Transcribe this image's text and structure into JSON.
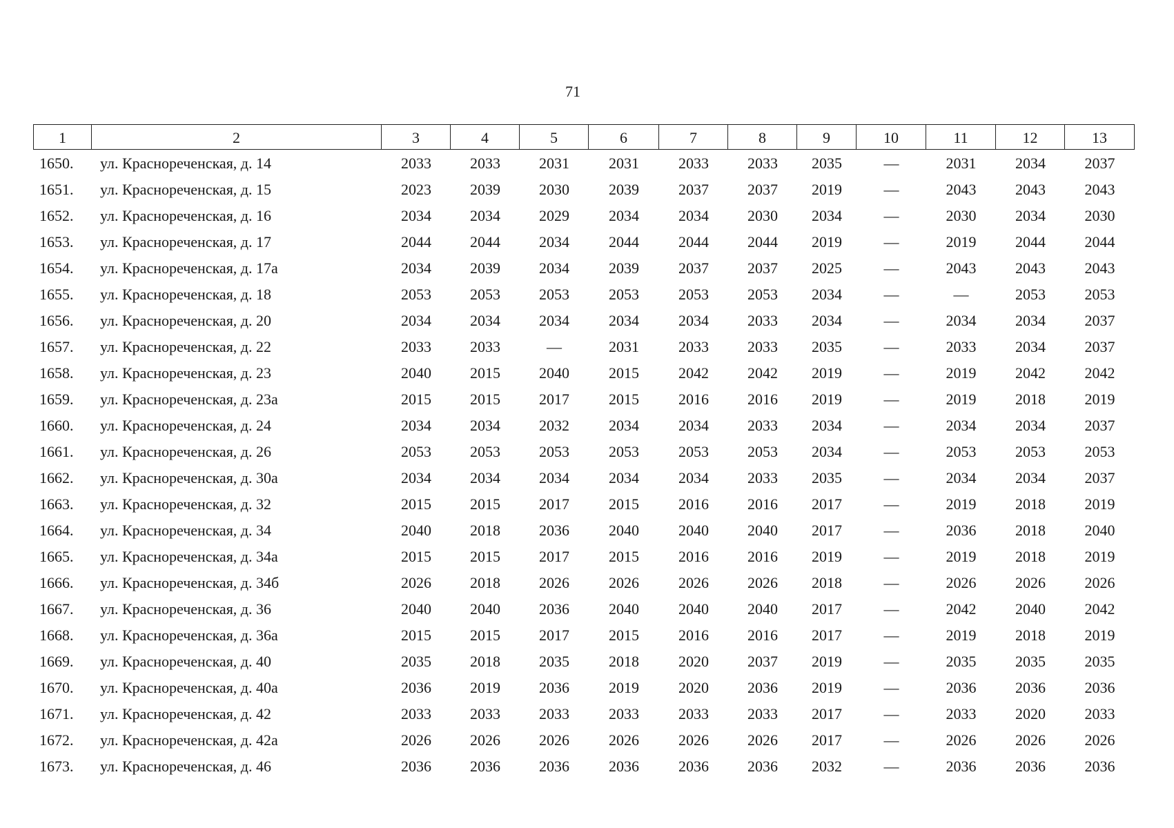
{
  "page_number": "71",
  "table": {
    "header": [
      "1",
      "2",
      "3",
      "4",
      "5",
      "6",
      "7",
      "8",
      "9",
      "10",
      "11",
      "12",
      "13"
    ],
    "rows": [
      [
        "1650.",
        "ул. Краснореченская, д. 14",
        "2033",
        "2033",
        "2031",
        "2031",
        "2033",
        "2033",
        "2035",
        "—",
        "2031",
        "2034",
        "2037"
      ],
      [
        "1651.",
        "ул. Краснореченская, д. 15",
        "2023",
        "2039",
        "2030",
        "2039",
        "2037",
        "2037",
        "2019",
        "—",
        "2043",
        "2043",
        "2043"
      ],
      [
        "1652.",
        "ул. Краснореченская, д. 16",
        "2034",
        "2034",
        "2029",
        "2034",
        "2034",
        "2030",
        "2034",
        "—",
        "2030",
        "2034",
        "2030"
      ],
      [
        "1653.",
        "ул. Краснореченская, д. 17",
        "2044",
        "2044",
        "2034",
        "2044",
        "2044",
        "2044",
        "2019",
        "—",
        "2019",
        "2044",
        "2044"
      ],
      [
        "1654.",
        "ул. Краснореченская, д. 17а",
        "2034",
        "2039",
        "2034",
        "2039",
        "2037",
        "2037",
        "2025",
        "—",
        "2043",
        "2043",
        "2043"
      ],
      [
        "1655.",
        "ул. Краснореченская, д. 18",
        "2053",
        "2053",
        "2053",
        "2053",
        "2053",
        "2053",
        "2034",
        "—",
        "—",
        "2053",
        "2053"
      ],
      [
        "1656.",
        "ул. Краснореченская, д. 20",
        "2034",
        "2034",
        "2034",
        "2034",
        "2034",
        "2033",
        "2034",
        "—",
        "2034",
        "2034",
        "2037"
      ],
      [
        "1657.",
        "ул. Краснореченская, д. 22",
        "2033",
        "2033",
        "—",
        "2031",
        "2033",
        "2033",
        "2035",
        "—",
        "2033",
        "2034",
        "2037"
      ],
      [
        "1658.",
        "ул. Краснореченская, д. 23",
        "2040",
        "2015",
        "2040",
        "2015",
        "2042",
        "2042",
        "2019",
        "—",
        "2019",
        "2042",
        "2042"
      ],
      [
        "1659.",
        "ул. Краснореченская, д. 23а",
        "2015",
        "2015",
        "2017",
        "2015",
        "2016",
        "2016",
        "2019",
        "—",
        "2019",
        "2018",
        "2019"
      ],
      [
        "1660.",
        "ул. Краснореченская, д. 24",
        "2034",
        "2034",
        "2032",
        "2034",
        "2034",
        "2033",
        "2034",
        "—",
        "2034",
        "2034",
        "2037"
      ],
      [
        "1661.",
        "ул. Краснореченская, д. 26",
        "2053",
        "2053",
        "2053",
        "2053",
        "2053",
        "2053",
        "2034",
        "—",
        "2053",
        "2053",
        "2053"
      ],
      [
        "1662.",
        "ул. Краснореченская, д. 30а",
        "2034",
        "2034",
        "2034",
        "2034",
        "2034",
        "2033",
        "2035",
        "—",
        "2034",
        "2034",
        "2037"
      ],
      [
        "1663.",
        "ул. Краснореченская, д. 32",
        "2015",
        "2015",
        "2017",
        "2015",
        "2016",
        "2016",
        "2017",
        "—",
        "2019",
        "2018",
        "2019"
      ],
      [
        "1664.",
        "ул. Краснореченская, д. 34",
        "2040",
        "2018",
        "2036",
        "2040",
        "2040",
        "2040",
        "2017",
        "—",
        "2036",
        "2018",
        "2040"
      ],
      [
        "1665.",
        "ул. Краснореченская, д. 34а",
        "2015",
        "2015",
        "2017",
        "2015",
        "2016",
        "2016",
        "2019",
        "—",
        "2019",
        "2018",
        "2019"
      ],
      [
        "1666.",
        "ул. Краснореченская, д. 34б",
        "2026",
        "2018",
        "2026",
        "2026",
        "2026",
        "2026",
        "2018",
        "—",
        "2026",
        "2026",
        "2026"
      ],
      [
        "1667.",
        "ул. Краснореченская, д. 36",
        "2040",
        "2040",
        "2036",
        "2040",
        "2040",
        "2040",
        "2017",
        "—",
        "2042",
        "2040",
        "2042"
      ],
      [
        "1668.",
        "ул. Краснореченская, д. 36а",
        "2015",
        "2015",
        "2017",
        "2015",
        "2016",
        "2016",
        "2017",
        "—",
        "2019",
        "2018",
        "2019"
      ],
      [
        "1669.",
        "ул. Краснореченская, д. 40",
        "2035",
        "2018",
        "2035",
        "2018",
        "2020",
        "2037",
        "2019",
        "—",
        "2035",
        "2035",
        "2035"
      ],
      [
        "1670.",
        "ул. Краснореченская, д. 40а",
        "2036",
        "2019",
        "2036",
        "2019",
        "2020",
        "2036",
        "2019",
        "—",
        "2036",
        "2036",
        "2036"
      ],
      [
        "1671.",
        "ул. Краснореченская, д. 42",
        "2033",
        "2033",
        "2033",
        "2033",
        "2033",
        "2033",
        "2017",
        "—",
        "2033",
        "2020",
        "2033"
      ],
      [
        "1672.",
        "ул. Краснореченская, д. 42а",
        "2026",
        "2026",
        "2026",
        "2026",
        "2026",
        "2026",
        "2017",
        "—",
        "2026",
        "2026",
        "2026"
      ],
      [
        "1673.",
        "ул. Краснореченская, д. 46",
        "2036",
        "2036",
        "2036",
        "2036",
        "2036",
        "2036",
        "2032",
        "—",
        "2036",
        "2036",
        "2036"
      ]
    ]
  }
}
